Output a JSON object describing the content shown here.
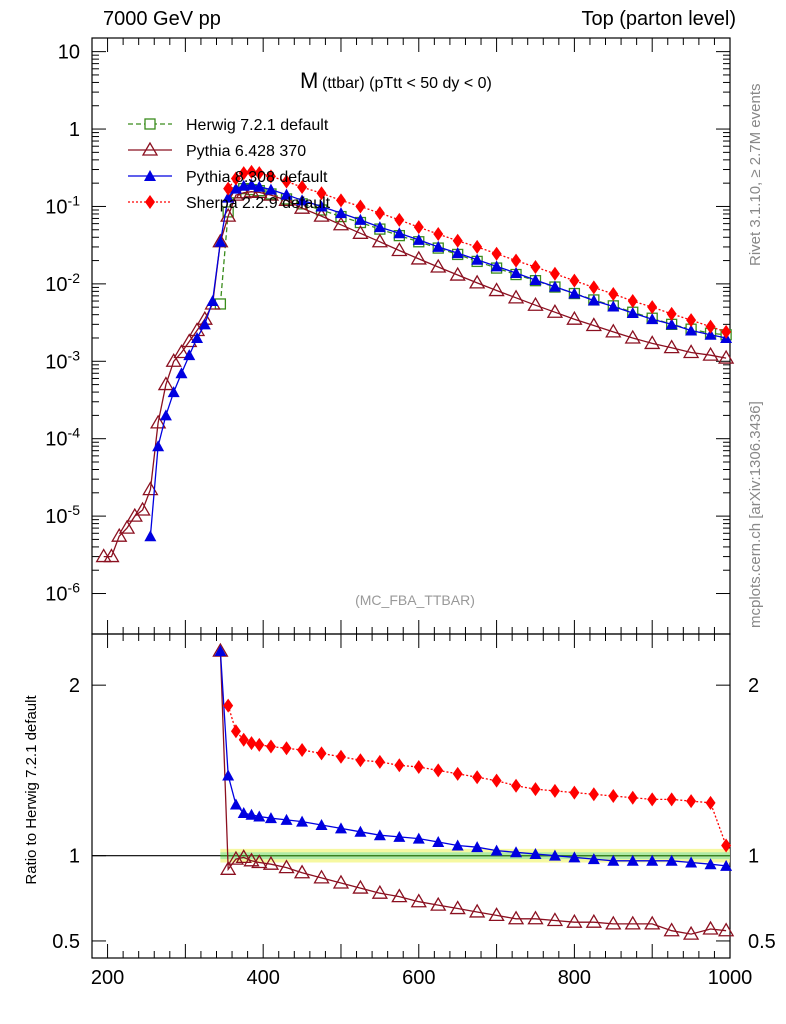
{
  "header": {
    "left": "7000 GeV pp",
    "right": "Top (parton level)"
  },
  "side_labels": {
    "rivet": "Rivet 3.1.10, ≥ 2.7M events",
    "mcplots": "mcplots.cern.ch [arXiv:1306.3436]"
  },
  "colors": {
    "herwig": "#3a8c1c",
    "pythia6": "#8b1020",
    "pythia8": "#0000e0",
    "sherpa": "#ff0000"
  },
  "chart_data": [
    {
      "type": "line",
      "title_main": "M",
      "title_sub": "(ttbar) (pTtt < 50 dy < 0)",
      "watermark": "(MC_FBA_TTBAR)",
      "xlim": [
        180,
        1000
      ],
      "ylim": [
        3e-07,
        15
      ],
      "yscale": "log",
      "ytick_labels": [
        "10",
        "1",
        "10-1",
        "10-2",
        "10-3",
        "10-4",
        "10-5",
        "10-6"
      ],
      "legend_position": "top-left",
      "series": [
        {
          "name": "Herwig 7.2.1 default",
          "marker": "open-square",
          "linestyle": "dashed",
          "x": [
            345,
            355,
            365,
            375,
            385,
            395,
            410,
            430,
            450,
            475,
            500,
            525,
            550,
            575,
            600,
            625,
            650,
            675,
            700,
            725,
            750,
            775,
            800,
            825,
            850,
            875,
            900,
            925,
            950,
            975,
            995
          ],
          "y": [
            0.0055,
            0.085,
            0.15,
            0.17,
            0.165,
            0.16,
            0.145,
            0.125,
            0.108,
            0.09,
            0.074,
            0.062,
            0.051,
            0.042,
            0.035,
            0.029,
            0.024,
            0.0195,
            0.016,
            0.0132,
            0.011,
            0.0091,
            0.0075,
            0.0062,
            0.0052,
            0.0043,
            0.0036,
            0.003,
            0.0026,
            0.0023,
            0.0022
          ]
        },
        {
          "name": "Pythia 6.428 370",
          "marker": "open-triangle",
          "linestyle": "solid",
          "x": [
            195,
            205,
            215,
            225,
            235,
            245,
            255,
            265,
            275,
            285,
            295,
            305,
            315,
            325,
            335,
            345,
            355,
            365,
            375,
            385,
            395,
            410,
            430,
            450,
            475,
            500,
            525,
            550,
            575,
            600,
            625,
            650,
            675,
            700,
            725,
            750,
            775,
            800,
            825,
            850,
            875,
            900,
            925,
            950,
            975,
            995
          ],
          "y": [
            3e-06,
            3e-06,
            5.5e-06,
            7e-06,
            1e-05,
            1.2e-05,
            2.2e-05,
            0.00016,
            0.0005,
            0.001,
            0.0013,
            0.0018,
            0.0025,
            0.0035,
            0.0055,
            0.035,
            0.075,
            0.14,
            0.15,
            0.155,
            0.152,
            0.14,
            0.12,
            0.095,
            0.075,
            0.058,
            0.045,
            0.035,
            0.027,
            0.021,
            0.0165,
            0.013,
            0.0103,
            0.0082,
            0.0066,
            0.0053,
            0.0043,
            0.0035,
            0.0029,
            0.0024,
            0.002,
            0.0017,
            0.0015,
            0.0013,
            0.0012,
            0.0011
          ]
        },
        {
          "name": "Pythia 8.308 default",
          "marker": "filled-triangle",
          "linestyle": "solid",
          "x": [
            255,
            265,
            275,
            285,
            295,
            305,
            315,
            325,
            335,
            345,
            355,
            365,
            375,
            385,
            395,
            410,
            430,
            450,
            475,
            500,
            525,
            550,
            575,
            600,
            625,
            650,
            675,
            700,
            725,
            750,
            775,
            800,
            825,
            850,
            875,
            900,
            925,
            950,
            975,
            995
          ],
          "y": [
            5.5e-06,
            8e-05,
            0.0002,
            0.0004,
            0.0007,
            0.0012,
            0.002,
            0.003,
            0.006,
            0.035,
            0.13,
            0.17,
            0.185,
            0.19,
            0.18,
            0.165,
            0.142,
            0.12,
            0.1,
            0.082,
            0.067,
            0.054,
            0.045,
            0.037,
            0.03,
            0.025,
            0.0205,
            0.0168,
            0.0138,
            0.0112,
            0.0092,
            0.0075,
            0.0061,
            0.0051,
            0.0042,
            0.0035,
            0.003,
            0.0025,
            0.0022,
            0.002
          ]
        },
        {
          "name": "Sherpa 2.2.9 default",
          "marker": "filled-diamond",
          "linestyle": "dotted",
          "x": [
            355,
            365,
            375,
            385,
            395,
            410,
            430,
            450,
            475,
            500,
            525,
            550,
            575,
            600,
            625,
            650,
            675,
            700,
            725,
            750,
            775,
            800,
            825,
            850,
            875,
            900,
            925,
            950,
            975,
            995
          ],
          "y": [
            0.17,
            0.23,
            0.27,
            0.28,
            0.27,
            0.245,
            0.21,
            0.178,
            0.148,
            0.12,
            0.1,
            0.082,
            0.067,
            0.054,
            0.044,
            0.036,
            0.03,
            0.0245,
            0.02,
            0.0165,
            0.0135,
            0.011,
            0.009,
            0.0074,
            0.006,
            0.005,
            0.0041,
            0.0034,
            0.0028,
            0.0024
          ]
        }
      ]
    },
    {
      "type": "line",
      "ylabel": "Ratio to Herwig 7.2.1 default",
      "xlim": [
        180,
        1000
      ],
      "ylim": [
        0.4,
        2.3
      ],
      "ytick_labels": [
        "2",
        "1",
        "0.5"
      ],
      "xtick_labels": [
        "200",
        "400",
        "600",
        "800",
        "1000"
      ],
      "reference": 1,
      "band_x": [
        345,
        1000
      ],
      "series": [
        {
          "name": "Pythia 6.428 370",
          "x": [
            345,
            355,
            365,
            375,
            385,
            395,
            410,
            430,
            450,
            475,
            500,
            525,
            550,
            575,
            600,
            625,
            650,
            675,
            700,
            725,
            750,
            775,
            800,
            825,
            850,
            875,
            900,
            925,
            950,
            975,
            995
          ],
          "y": [
            2.2,
            0.92,
            0.98,
            0.99,
            0.97,
            0.96,
            0.95,
            0.93,
            0.9,
            0.87,
            0.84,
            0.81,
            0.78,
            0.76,
            0.73,
            0.71,
            0.69,
            0.67,
            0.65,
            0.63,
            0.63,
            0.62,
            0.61,
            0.61,
            0.6,
            0.6,
            0.6,
            0.56,
            0.54,
            0.57,
            0.56
          ]
        },
        {
          "name": "Pythia 8.308 default",
          "x": [
            345,
            355,
            365,
            375,
            385,
            395,
            410,
            430,
            450,
            475,
            500,
            525,
            550,
            575,
            600,
            625,
            650,
            675,
            700,
            725,
            750,
            775,
            800,
            825,
            850,
            875,
            900,
            925,
            950,
            975,
            995
          ],
          "y": [
            2.2,
            1.47,
            1.3,
            1.25,
            1.24,
            1.23,
            1.22,
            1.21,
            1.2,
            1.18,
            1.16,
            1.14,
            1.12,
            1.11,
            1.1,
            1.08,
            1.06,
            1.05,
            1.03,
            1.02,
            1.01,
            1.0,
            0.99,
            0.98,
            0.97,
            0.97,
            0.97,
            0.97,
            0.96,
            0.95,
            0.94
          ]
        },
        {
          "name": "Sherpa 2.2.9 default",
          "x": [
            355,
            365,
            375,
            385,
            395,
            410,
            430,
            450,
            475,
            500,
            525,
            550,
            575,
            600,
            625,
            650,
            675,
            700,
            725,
            750,
            775,
            800,
            825,
            850,
            875,
            900,
            925,
            950,
            975,
            995
          ],
          "y": [
            1.88,
            1.73,
            1.68,
            1.66,
            1.65,
            1.64,
            1.63,
            1.62,
            1.6,
            1.58,
            1.56,
            1.55,
            1.53,
            1.52,
            1.5,
            1.48,
            1.46,
            1.44,
            1.41,
            1.39,
            1.38,
            1.37,
            1.36,
            1.35,
            1.34,
            1.33,
            1.33,
            1.32,
            1.31,
            1.06
          ]
        }
      ]
    }
  ]
}
